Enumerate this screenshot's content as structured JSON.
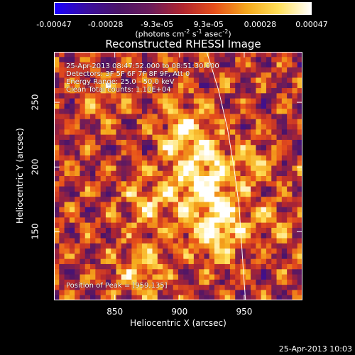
{
  "colorbar": {
    "tick_labels": [
      "-0.00047",
      "-0.00028",
      "-9.3e-05",
      "9.3e-05",
      "0.00028",
      "0.00047"
    ],
    "units_text": "(photons cm",
    "units_exp1": "-2",
    "units_mid": " s",
    "units_exp2": "-1",
    "units_mid2": " asec",
    "units_exp3": "-2",
    "units_end": ")"
  },
  "title": "Reconstructed RHESSI Image",
  "annotations": {
    "line1": "25-Apr-2013 08:47:52.000 to 08:51:30.000",
    "line2": "Detectors: 3F 5F 6F 7F 8F 9F, Att 0",
    "line3": "Energy Range: 25.0 - 50.0 keV",
    "line4": "Clean     Total counts: 1.10E+04",
    "peak": "Position of Peak = [959,135]"
  },
  "footer": "25-Apr-2013 10:03",
  "chart_data": {
    "type": "heatmap",
    "title": "Reconstructed RHESSI Image",
    "xlabel": "Heliocentric X (arcsec)",
    "ylabel": "Heliocentric Y (arcsec)",
    "xlim": [
      803,
      995
    ],
    "ylim": [
      97,
      289
    ],
    "xticks": [
      850,
      900,
      950
    ],
    "yticks": [
      150,
      200,
      250
    ],
    "colorscale": [
      "#1b00ff",
      "#3a0ea0",
      "#4b1468",
      "#6d1c5a",
      "#b2262f",
      "#e8501a",
      "#f5a81c",
      "#ffe05a",
      "#ffffff"
    ],
    "vmin": -0.00047,
    "vmax": 0.00047,
    "grid_cells": 48,
    "limb_points": [
      [
        921,
        289
      ],
      [
        930,
        260
      ],
      [
        937,
        230
      ],
      [
        942,
        200
      ],
      [
        946,
        170
      ],
      [
        948,
        140
      ],
      [
        950,
        110
      ],
      [
        951,
        97
      ]
    ],
    "hotspots": [
      {
        "x": 918,
        "y": 190,
        "sigma": 20,
        "amp": 0.00042
      },
      {
        "x": 930,
        "y": 150,
        "sigma": 16,
        "amp": 0.00036
      },
      {
        "x": 905,
        "y": 230,
        "sigma": 14,
        "amp": 0.0003
      },
      {
        "x": 875,
        "y": 170,
        "sigma": 12,
        "amp": 0.00026
      },
      {
        "x": 870,
        "y": 120,
        "sigma": 14,
        "amp": 0.00028
      },
      {
        "x": 840,
        "y": 255,
        "sigma": 10,
        "amp": 0.00022
      },
      {
        "x": 960,
        "y": 205,
        "sigma": 10,
        "amp": 0.0002
      },
      {
        "x": 972,
        "y": 160,
        "sigma": 9,
        "amp": 0.00018
      }
    ]
  }
}
